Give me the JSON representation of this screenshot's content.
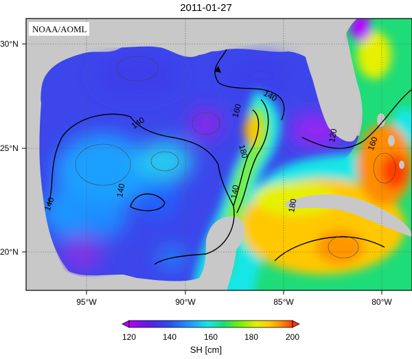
{
  "title": "2011-01-27",
  "credit": "NOAA/AOML",
  "colorbar": {
    "label": "SH [cm]",
    "ticks": [
      "120",
      "140",
      "160",
      "180",
      "200"
    ],
    "colors": [
      "#b400ff",
      "#5a1ee6",
      "#2850f0",
      "#1e96ff",
      "#14e6e6",
      "#1edc78",
      "#78f000",
      "#e6f000",
      "#ffc800",
      "#ff8c00",
      "#ff3c00"
    ]
  },
  "axes": {
    "lon_labels": [
      "95°W",
      "90°W",
      "85°W",
      "80°W"
    ],
    "lat_labels": [
      "30°N",
      "25°N",
      "20°N"
    ]
  },
  "contour_labels": [
    "140",
    "140",
    "140",
    "140",
    "160",
    "180",
    "140",
    "120",
    "160",
    "180"
  ],
  "land_color": "#c8c8c8",
  "arrow_color": "#000000"
}
